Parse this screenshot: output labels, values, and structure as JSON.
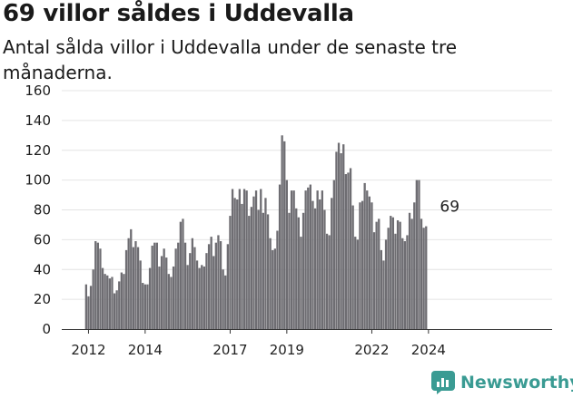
{
  "title": "69 villor såldes i Uddevalla",
  "subtitle": "Antal sålda villor i Uddevalla under de senaste tre månaderna.",
  "brand": {
    "name": "Newsworthy",
    "color": "#3a9b93",
    "icon": "newsworthy-logo-icon"
  },
  "colors": {
    "bar": "#6e6d72",
    "highlight": "#2a9d97"
  },
  "chart_data": {
    "type": "bar",
    "title": "69 villor såldes i Uddevalla",
    "subtitle": "Antal sålda villor i Uddevalla under de senaste tre månaderna.",
    "x_start": "2011-12",
    "ylim": [
      0,
      160
    ],
    "y_ticks": [
      0,
      20,
      40,
      60,
      80,
      100,
      120,
      140,
      160
    ],
    "x_tick_labels": [
      {
        "label": "2012",
        "date": "2012-01"
      },
      {
        "label": "2014",
        "date": "2014-01"
      },
      {
        "label": "2017",
        "date": "2017-01"
      },
      {
        "label": "2019",
        "date": "2019-01"
      },
      {
        "label": "2022",
        "date": "2022-01"
      },
      {
        "label": "2024",
        "date": "2024-01"
      }
    ],
    "grid": true,
    "highlight": {
      "date": "2024-10",
      "label": "69",
      "value": 69
    },
    "values": [
      30,
      22,
      29,
      40,
      59,
      58,
      54,
      41,
      37,
      36,
      34,
      35,
      24,
      26,
      32,
      38,
      37,
      53,
      61,
      67,
      55,
      59,
      55,
      46,
      31,
      30,
      30,
      41,
      56,
      58,
      58,
      42,
      49,
      54,
      48,
      37,
      35,
      42,
      54,
      58,
      72,
      74,
      58,
      43,
      51,
      61,
      55,
      46,
      41,
      43,
      42,
      51,
      57,
      62,
      49,
      58,
      63,
      59,
      40,
      36,
      57,
      76,
      94,
      88,
      87,
      94,
      84,
      94,
      93,
      76,
      82,
      89,
      93,
      80,
      94,
      78,
      88,
      77,
      61,
      53,
      54,
      66,
      97,
      130,
      126,
      100,
      78,
      93,
      93,
      81,
      75,
      62,
      78,
      93,
      95,
      97,
      86,
      81,
      93,
      87,
      93,
      80,
      64,
      63,
      88,
      100,
      119,
      125,
      118,
      124,
      104,
      105,
      108,
      83,
      62,
      60,
      85,
      86,
      98,
      93,
      89,
      85,
      65,
      72,
      74,
      53,
      46,
      60,
      68,
      76,
      75,
      64,
      73,
      72,
      61,
      59,
      63,
      78,
      74,
      85,
      100,
      100,
      74,
      68,
      69
    ]
  }
}
